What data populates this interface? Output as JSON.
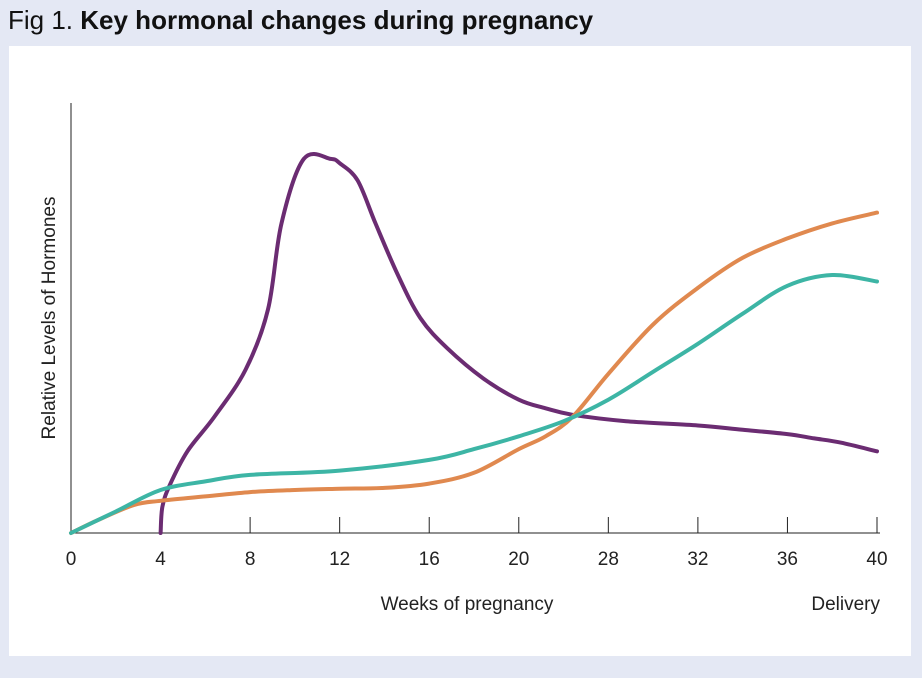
{
  "figure": {
    "label": "Fig 1.",
    "heading": "Key hormonal changes during pregnancy"
  },
  "chart_data": {
    "type": "line",
    "title": "Key hormonal changes during pregnancy",
    "xlabel": "Weeks of pregnancy",
    "ylabel": "Relative Levels of Hormones",
    "x_end_label": "Delivery",
    "x_tick_labels": [
      "0",
      "4",
      "8",
      "12",
      "16",
      "20",
      "28",
      "32",
      "36",
      "40"
    ],
    "grid": false,
    "legend": "none",
    "xlim": [
      0,
      9
    ],
    "ylim": [
      0,
      100
    ],
    "series": [
      {
        "color": "#6b2c72",
        "x": [
          1.0,
          1.02,
          1.1,
          1.3,
          1.6,
          1.95,
          2.2,
          2.35,
          2.6,
          2.9,
          3.0,
          3.2,
          3.4,
          3.65,
          3.9,
          4.2,
          4.6,
          5.0,
          5.3,
          5.6,
          6.2,
          7.0,
          7.5,
          8.0,
          8.3,
          8.6,
          9.0
        ],
        "y": [
          0,
          6,
          11,
          19,
          27,
          38,
          52,
          72,
          87,
          87,
          86,
          82,
          72,
          60,
          50,
          43,
          36,
          31,
          29,
          27.5,
          26,
          25,
          24,
          23,
          22,
          21,
          19
        ]
      },
      {
        "color": "#e0894f",
        "x": [
          0,
          0.3,
          0.7,
          1.0,
          1.5,
          2.0,
          2.5,
          3.0,
          3.5,
          4.0,
          4.5,
          5.0,
          5.3,
          5.6,
          6.0,
          6.5,
          7.0,
          7.5,
          8.0,
          8.5,
          9.0
        ],
        "y": [
          0,
          3,
          6.5,
          7.5,
          8.5,
          9.5,
          10,
          10.3,
          10.5,
          11.5,
          14,
          19.5,
          22.5,
          27,
          37,
          48.5,
          57,
          64,
          68.5,
          72,
          74.5
        ]
      },
      {
        "color": "#3db5a5",
        "x": [
          0,
          0.5,
          1.0,
          1.5,
          2.0,
          3.0,
          4.0,
          4.5,
          5.0,
          5.5,
          6.0,
          6.5,
          7.0,
          7.5,
          8.0,
          8.5,
          9.0
        ],
        "y": [
          0,
          5,
          10,
          12,
          13.5,
          14.5,
          17,
          19.5,
          22.5,
          26,
          31,
          37.5,
          44,
          51,
          57.5,
          60,
          58.5
        ]
      }
    ]
  }
}
